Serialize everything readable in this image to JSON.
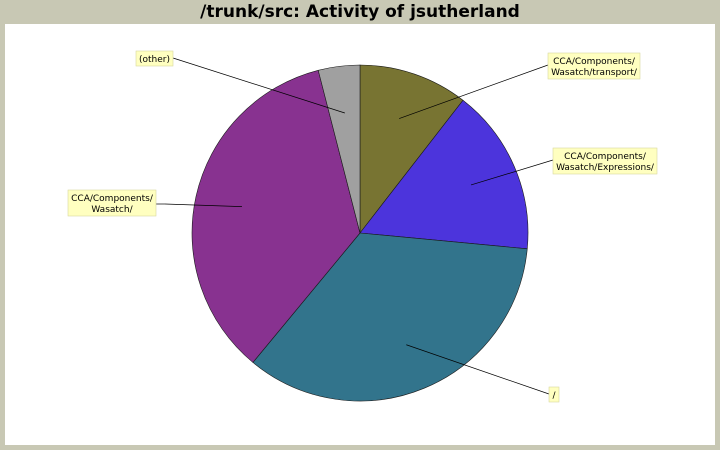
{
  "chart_data": {
    "type": "pie",
    "title": "/trunk/src: Activity of jsutherland",
    "slices": [
      {
        "label": [
          "CCA/Components/",
          "Wasatch/transport/"
        ],
        "value": 10.5,
        "color": "#787432"
      },
      {
        "label": [
          "CCA/Components/",
          "Wasatch/Expressions/"
        ],
        "value": 16.0,
        "color": "#4c34dc"
      },
      {
        "label": [
          "/"
        ],
        "value": 34.5,
        "color": "#32748c"
      },
      {
        "label": [
          "CCA/Components/",
          "Wasatch/"
        ],
        "value": 35.0,
        "color": "#883290"
      },
      {
        "label": [
          "(other)"
        ],
        "value": 4.0,
        "color": "#a0a0a0"
      }
    ],
    "start_angle": "12 o'clock",
    "direction": "clockwise",
    "legend": "none"
  }
}
